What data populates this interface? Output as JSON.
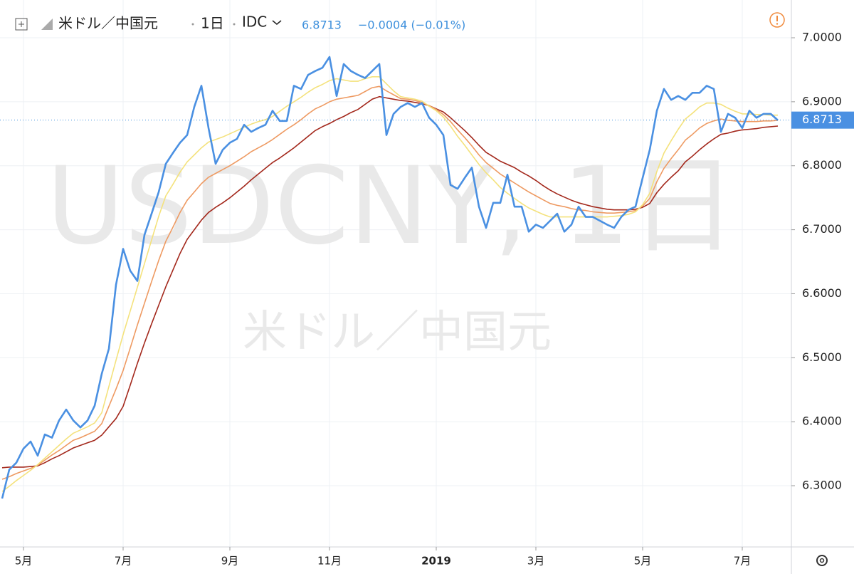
{
  "chart_data": {
    "type": "line",
    "header": {
      "symbol": "米ドル／中国元",
      "interval": "1日",
      "source": "IDC",
      "change_label": "−0.0004 (−0.01%)"
    },
    "watermark": [
      "USDCNY, 1日",
      "米ドル／中国元"
    ],
    "last_price": 6.8713,
    "ylim": [
      6.2043,
      7.059
    ],
    "yticks": [
      {
        "value": 6.3,
        "label": "6.3000"
      },
      {
        "value": 6.4,
        "label": "6.4000"
      },
      {
        "value": 6.5,
        "label": "6.5000"
      },
      {
        "value": 6.6,
        "label": "6.6000"
      },
      {
        "value": 6.7,
        "label": "6.7000"
      },
      {
        "value": 6.8,
        "label": "6.8000"
      },
      {
        "value": 6.9,
        "label": "6.9000"
      },
      {
        "value": 7.0,
        "label": "7.0000"
      }
    ],
    "grid": true,
    "categories": [
      null,
      null,
      null,
      "5月",
      null,
      null,
      null,
      null,
      null,
      null,
      null,
      null,
      null,
      null,
      null,
      null,
      null,
      "7月",
      null,
      null,
      null,
      null,
      null,
      null,
      null,
      null,
      null,
      null,
      null,
      null,
      null,
      null,
      "9月",
      null,
      null,
      null,
      null,
      null,
      null,
      null,
      null,
      null,
      null,
      null,
      null,
      null,
      "11月",
      null,
      null,
      null,
      null,
      null,
      null,
      null,
      null,
      null,
      null,
      null,
      null,
      null,
      null,
      "2019",
      null,
      null,
      null,
      null,
      null,
      null,
      null,
      null,
      null,
      null,
      null,
      null,
      null,
      "3月",
      null,
      null,
      null,
      null,
      null,
      null,
      null,
      null,
      null,
      null,
      null,
      null,
      null,
      null,
      "5月",
      null,
      null,
      null,
      null,
      null,
      null,
      null,
      null,
      null,
      null,
      null,
      null,
      null,
      "7月",
      null,
      null,
      null,
      null,
      null
    ],
    "series": [
      {
        "color": "#a3281c",
        "values": [
          6.328,
          6.329,
          6.329,
          6.329,
          6.33,
          6.331,
          6.336,
          6.342,
          6.347,
          6.353,
          6.359,
          6.363,
          6.367,
          6.371,
          6.379,
          6.392,
          6.405,
          6.424,
          6.457,
          6.491,
          6.523,
          6.553,
          6.582,
          6.611,
          6.637,
          6.663,
          6.685,
          6.7,
          6.715,
          6.727,
          6.735,
          6.742,
          6.75,
          6.759,
          6.768,
          6.778,
          6.787,
          6.796,
          6.805,
          6.812,
          6.82,
          6.828,
          6.837,
          6.846,
          6.855,
          6.861,
          6.866,
          6.872,
          6.877,
          6.883,
          6.888,
          6.896,
          6.904,
          6.908,
          6.906,
          6.904,
          6.902,
          6.901,
          6.899,
          6.897,
          6.894,
          6.889,
          6.884,
          6.875,
          6.865,
          6.855,
          6.844,
          6.832,
          6.821,
          6.814,
          6.807,
          6.802,
          6.797,
          6.79,
          6.784,
          6.777,
          6.769,
          6.762,
          6.756,
          6.751,
          6.746,
          6.742,
          6.739,
          6.736,
          6.734,
          6.732,
          6.731,
          6.731,
          6.731,
          6.732,
          6.735,
          6.741,
          6.758,
          6.771,
          6.782,
          6.792,
          6.806,
          6.815,
          6.825,
          6.834,
          6.842,
          6.849,
          6.851,
          6.854,
          6.856,
          6.857,
          6.858,
          6.86,
          6.861,
          6.862
        ]
      },
      {
        "color": "#ee9a62",
        "values": [
          6.31,
          6.314,
          6.319,
          6.323,
          6.327,
          6.332,
          6.34,
          6.348,
          6.355,
          6.363,
          6.371,
          6.375,
          6.38,
          6.385,
          6.397,
          6.424,
          6.451,
          6.48,
          6.515,
          6.551,
          6.585,
          6.619,
          6.652,
          6.682,
          6.704,
          6.727,
          6.746,
          6.759,
          6.772,
          6.782,
          6.788,
          6.794,
          6.8,
          6.807,
          6.814,
          6.822,
          6.828,
          6.834,
          6.841,
          6.849,
          6.857,
          6.864,
          6.872,
          6.881,
          6.889,
          6.894,
          6.9,
          6.904,
          6.906,
          6.908,
          6.91,
          6.916,
          6.922,
          6.924,
          6.917,
          6.911,
          6.905,
          6.904,
          6.902,
          6.899,
          6.894,
          6.888,
          6.88,
          6.869,
          6.856,
          6.844,
          6.831,
          6.817,
          6.805,
          6.796,
          6.787,
          6.78,
          6.773,
          6.766,
          6.759,
          6.753,
          6.747,
          6.741,
          6.738,
          6.736,
          6.733,
          6.731,
          6.73,
          6.728,
          6.727,
          6.726,
          6.726,
          6.727,
          6.728,
          6.73,
          6.737,
          6.749,
          6.775,
          6.796,
          6.811,
          6.825,
          6.84,
          6.849,
          6.859,
          6.866,
          6.87,
          6.873,
          6.871,
          6.87,
          6.869,
          6.869,
          6.869,
          6.87,
          6.87,
          6.871
        ]
      },
      {
        "color": "#f4e27c",
        "values": [
          6.291,
          6.299,
          6.308,
          6.316,
          6.324,
          6.333,
          6.343,
          6.353,
          6.363,
          6.373,
          6.382,
          6.387,
          6.392,
          6.398,
          6.414,
          6.455,
          6.496,
          6.536,
          6.573,
          6.61,
          6.647,
          6.684,
          6.721,
          6.753,
          6.771,
          6.79,
          6.806,
          6.817,
          6.828,
          6.837,
          6.841,
          6.845,
          6.85,
          6.855,
          6.86,
          6.865,
          6.869,
          6.872,
          6.877,
          6.885,
          6.893,
          6.9,
          6.907,
          6.915,
          6.922,
          6.927,
          6.933,
          6.936,
          6.934,
          6.932,
          6.932,
          6.936,
          6.939,
          6.939,
          6.928,
          6.917,
          6.908,
          6.906,
          6.904,
          6.901,
          6.893,
          6.886,
          6.876,
          6.862,
          6.846,
          6.832,
          6.817,
          6.802,
          6.789,
          6.778,
          6.766,
          6.757,
          6.749,
          6.741,
          6.734,
          6.729,
          6.724,
          6.72,
          6.72,
          6.72,
          6.72,
          6.72,
          6.72,
          6.72,
          6.72,
          6.72,
          6.721,
          6.722,
          6.724,
          6.728,
          6.739,
          6.757,
          6.791,
          6.82,
          6.839,
          6.857,
          6.873,
          6.882,
          6.892,
          6.898,
          6.898,
          6.896,
          6.89,
          6.885,
          6.881,
          6.881,
          6.88,
          6.88,
          6.879,
          6.879
        ]
      },
      {
        "color": "#4a90e2",
        "values": [
          6.28,
          6.325,
          6.336,
          6.358,
          6.369,
          6.347,
          6.38,
          6.375,
          6.402,
          6.419,
          6.402,
          6.391,
          6.402,
          6.425,
          6.475,
          6.514,
          6.614,
          6.67,
          6.636,
          6.62,
          6.692,
          6.725,
          6.759,
          6.803,
          6.82,
          6.836,
          6.848,
          6.892,
          6.925,
          6.859,
          6.803,
          6.825,
          6.836,
          6.842,
          6.864,
          6.853,
          6.859,
          6.864,
          6.886,
          6.87,
          6.87,
          6.925,
          6.92,
          6.942,
          6.948,
          6.953,
          6.97,
          6.909,
          6.959,
          6.948,
          6.942,
          6.937,
          6.948,
          6.959,
          6.848,
          6.881,
          6.892,
          6.898,
          6.892,
          6.898,
          6.875,
          6.864,
          6.848,
          6.77,
          6.764,
          6.781,
          6.797,
          6.736,
          6.703,
          6.742,
          6.742,
          6.786,
          6.736,
          6.736,
          6.697,
          6.708,
          6.703,
          6.714,
          6.725,
          6.697,
          6.708,
          6.736,
          6.72,
          6.72,
          6.714,
          6.708,
          6.703,
          6.72,
          6.731,
          6.736,
          6.781,
          6.825,
          6.886,
          6.92,
          6.903,
          6.909,
          6.903,
          6.914,
          6.914,
          6.925,
          6.92,
          6.853,
          6.881,
          6.875,
          6.859,
          6.886,
          6.875,
          6.881,
          6.881,
          6.871
        ]
      }
    ]
  }
}
